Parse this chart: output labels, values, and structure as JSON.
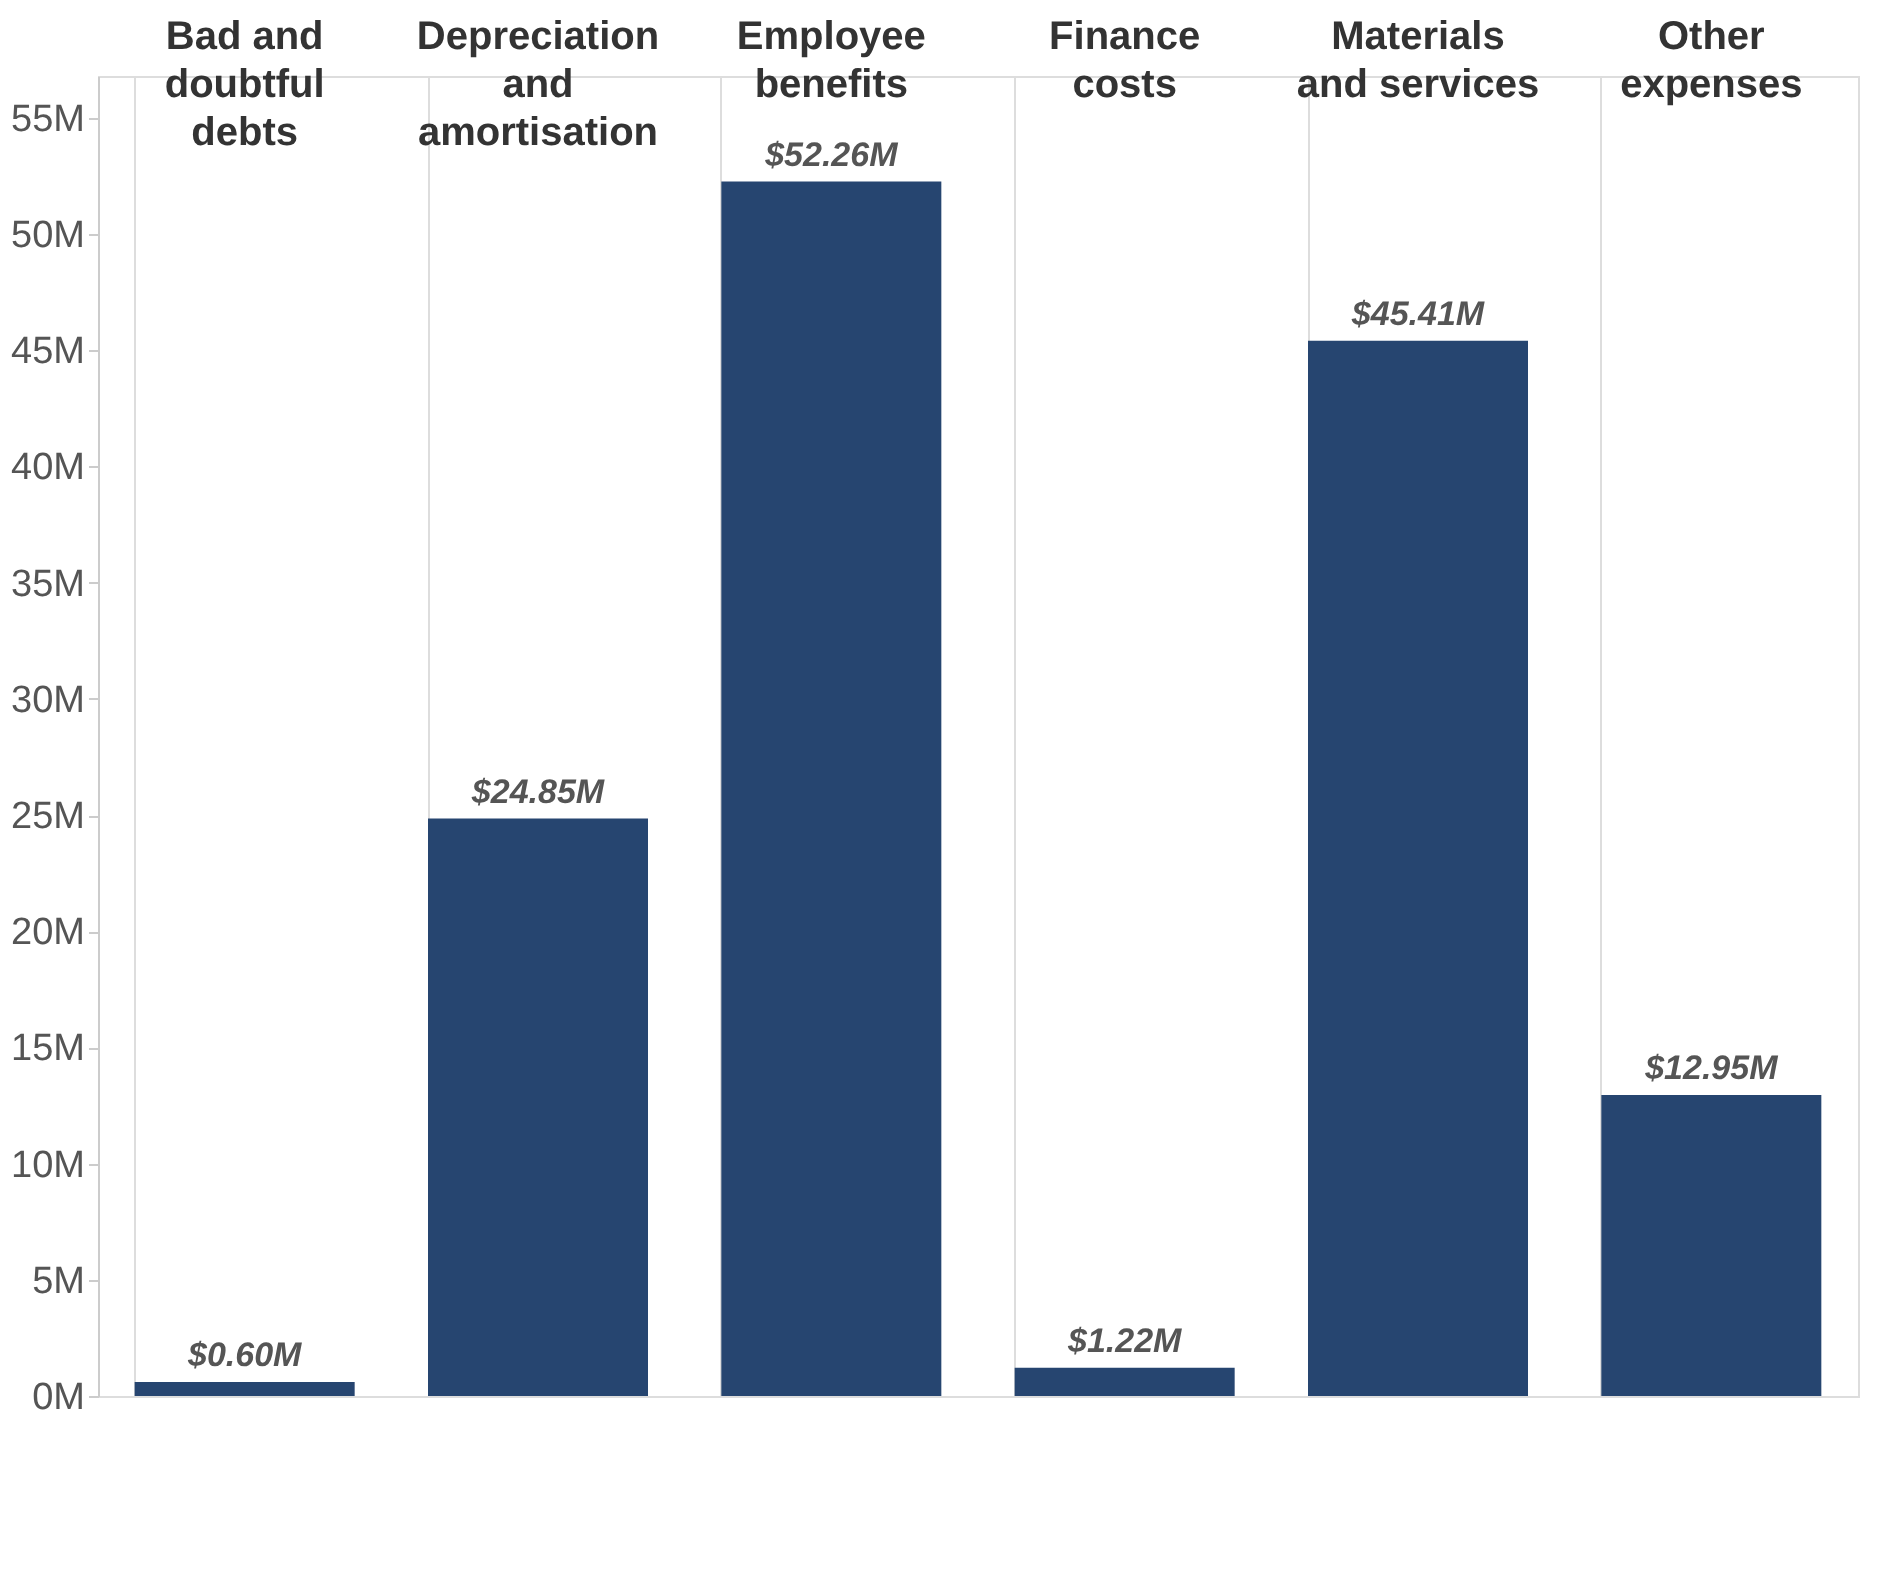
{
  "chart_data": {
    "type": "bar",
    "categories": [
      "Bad and doubtful debts",
      "Depreciation and amortisation",
      "Employee benefits",
      "Finance costs",
      "Materials and services",
      "Other expenses"
    ],
    "values": [
      0.6,
      24.85,
      52.26,
      1.22,
      45.41,
      12.95
    ],
    "value_labels": [
      "$0.60M",
      "$24.85M",
      "$52.26M",
      "$1.22M",
      "$45.41M",
      "$12.95M"
    ],
    "color": "#264570",
    "ylim": [
      0,
      56.8
    ],
    "yticks": [
      {
        "value": 0,
        "label": "0M"
      },
      {
        "value": 5,
        "label": "5M"
      },
      {
        "value": 10,
        "label": "10M"
      },
      {
        "value": 15,
        "label": "15M"
      },
      {
        "value": 20,
        "label": "20M"
      },
      {
        "value": 25,
        "label": "25M"
      },
      {
        "value": 30,
        "label": "30M"
      },
      {
        "value": 35,
        "label": "35M"
      },
      {
        "value": 40,
        "label": "40M"
      },
      {
        "value": 45,
        "label": "45M"
      },
      {
        "value": 50,
        "label": "50M"
      },
      {
        "value": 55,
        "label": "55M"
      }
    ],
    "grid": "x"
  }
}
